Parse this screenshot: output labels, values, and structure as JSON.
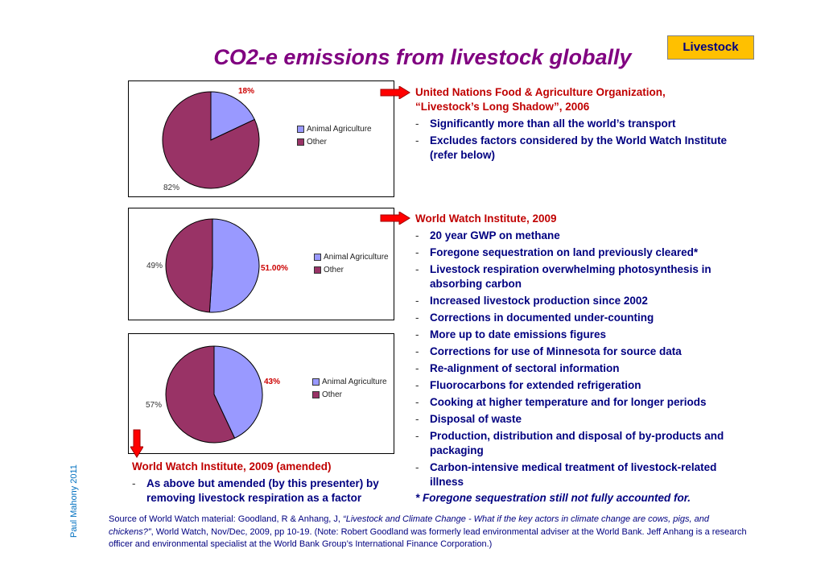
{
  "tag": "Livestock",
  "title": "CO2-e emissions from livestock globally",
  "charts": [
    {
      "type": "pie",
      "label_agri": "18%",
      "label_other": "82%",
      "legend": [
        "Animal Agriculture",
        "Other"
      ],
      "values": [
        18,
        82
      ],
      "colors": [
        "#9999FF",
        "#993366"
      ]
    },
    {
      "type": "pie",
      "label_agri": "51.00%",
      "label_other": "49%",
      "legend": [
        "Animal Agriculture",
        "Other"
      ],
      "values": [
        51,
        49
      ],
      "colors": [
        "#9999FF",
        "#993366"
      ]
    },
    {
      "type": "pie",
      "label_agri": "43%",
      "label_other": "57%",
      "legend": [
        "Animal Agriculture",
        "Other"
      ],
      "values": [
        43,
        57
      ],
      "colors": [
        "#9999FF",
        "#993366"
      ]
    }
  ],
  "fao": {
    "head1": "United Nations Food & Agriculture Organization,",
    "head2": "“Livestock’s Long Shadow”, 2006",
    "items": [
      "Significantly more than all the world’s transport",
      "Excludes factors considered by the World Watch Institute (refer below)"
    ]
  },
  "wwi": {
    "head": "World Watch Institute, 2009",
    "items": [
      "20 year GWP on methane",
      "Foregone sequestration on land previously cleared*",
      "Livestock respiration overwhelming photosynthesis in absorbing carbon",
      "Increased livestock production since 2002",
      "Corrections in documented under-counting",
      "More up to date emissions figures",
      "Corrections for use of Minnesota for source data",
      "Re-alignment of sectoral information",
      "Fluorocarbons for extended refrigeration",
      "Cooking at higher temperature and for longer periods",
      "Disposal of waste",
      "Production, distribution and disposal of by-products and packaging",
      "Carbon-intensive medical treatment of livestock-related illness"
    ],
    "note": "* Foregone sequestration still not fully accounted for."
  },
  "amended": {
    "head": "World Watch Institute, 2009 (amended)",
    "item": "As above but amended (by this presenter) by removing livestock respiration as a factor"
  },
  "source": {
    "prefix": "Source of World Watch material: Goodland, R & Anhang, J, ",
    "italic": "“Livestock and Climate Change - What if the key actors in climate change are cows, pigs, and chickens?”",
    "suffix": ", World Watch, Nov/Dec, 2009, pp 10-19. (Note: Robert Goodland was formerly lead environmental adviser at the World Bank. Jeff Anhang is a research officer and environmental specialist at the World Bank Group’s International Finance Corporation.)"
  },
  "author": "Paul Mahony 2011"
}
